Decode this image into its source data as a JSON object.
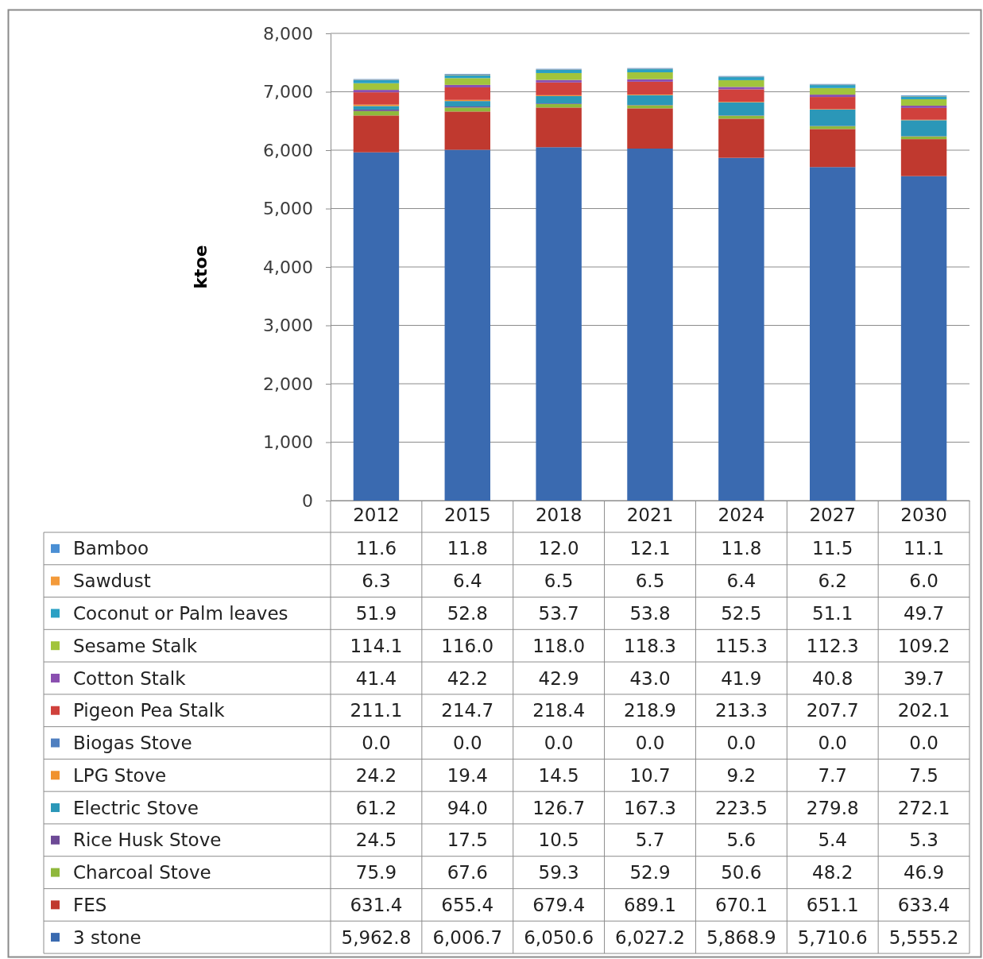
{
  "chart_data": {
    "type": "bar",
    "stacked": true,
    "ylabel": "ktoe",
    "grid": "y",
    "legend": "bottom",
    "categories": [
      "2012",
      "2015",
      "2018",
      "2021",
      "2024",
      "2027",
      "2030"
    ],
    "ylim": [
      0,
      8000
    ],
    "yticks": [
      0,
      {
        "value": 1000,
        "label": "1,000"
      },
      {
        "value": 2000,
        "label": "2,000"
      },
      {
        "value": 3000,
        "label": "3,000"
      },
      {
        "value": 4000,
        "label": "4,000"
      },
      {
        "value": 5000,
        "label": "5,000"
      },
      {
        "value": 6000,
        "label": "6,000"
      },
      {
        "value": 7000,
        "label": "7,000"
      },
      {
        "value": 8000,
        "label": "8,000"
      }
    ],
    "series": [
      {
        "name": "3 stone",
        "color": "#3a6ab0",
        "values": [
          5962.8,
          6006.7,
          6050.6,
          6027.2,
          5868.9,
          5710.6,
          5555.2
        ],
        "value_labels": [
          "5,962.8",
          "6,006.7",
          "6,050.6",
          "6,027.2",
          "5,868.9",
          "5,710.6",
          "5,555.2"
        ]
      },
      {
        "name": "FES",
        "color": "#c0392f",
        "values": [
          631.4,
          655.4,
          679.4,
          689.1,
          670.1,
          651.1,
          633.4
        ],
        "value_labels": [
          "631.4",
          "655.4",
          "679.4",
          "689.1",
          "670.1",
          "651.1",
          "633.4"
        ]
      },
      {
        "name": "Charcoal Stove",
        "color": "#8fb83c",
        "values": [
          75.9,
          67.6,
          59.3,
          52.9,
          50.6,
          48.2,
          46.9
        ],
        "value_labels": [
          "75.9",
          "67.6",
          "59.3",
          "52.9",
          "50.6",
          "48.2",
          "46.9"
        ]
      },
      {
        "name": "Rice Husk Stove",
        "color": "#6d4a96",
        "values": [
          24.5,
          17.5,
          10.5,
          5.7,
          5.6,
          5.4,
          5.3
        ],
        "value_labels": [
          "24.5",
          "17.5",
          "10.5",
          "5.7",
          "5.6",
          "5.4",
          "5.3"
        ]
      },
      {
        "name": "Electric Stove",
        "color": "#2b97b8",
        "values": [
          61.2,
          94.0,
          126.7,
          167.3,
          223.5,
          279.8,
          272.1
        ],
        "value_labels": [
          "61.2",
          "94.0",
          "126.7",
          "167.3",
          "223.5",
          "279.8",
          "272.1"
        ]
      },
      {
        "name": "LPG Stove",
        "color": "#f0922e",
        "values": [
          24.2,
          19.4,
          14.5,
          10.7,
          9.2,
          7.7,
          7.5
        ],
        "value_labels": [
          "24.2",
          "19.4",
          "14.5",
          "10.7",
          "9.2",
          "7.7",
          "7.5"
        ]
      },
      {
        "name": "Biogas Stove",
        "color": "#4f7fc0",
        "values": [
          0.0,
          0.0,
          0.0,
          0.0,
          0.0,
          0.0,
          0.0
        ],
        "value_labels": [
          "0.0",
          "0.0",
          "0.0",
          "0.0",
          "0.0",
          "0.0",
          "0.0"
        ]
      },
      {
        "name": "Pigeon Pea Stalk",
        "color": "#d0413c",
        "values": [
          211.1,
          214.7,
          218.4,
          218.9,
          213.3,
          207.7,
          202.1
        ],
        "value_labels": [
          "211.1",
          "214.7",
          "218.4",
          "218.9",
          "213.3",
          "207.7",
          "202.1"
        ]
      },
      {
        "name": "Cotton Stalk",
        "color": "#8a4fb0",
        "values": [
          41.4,
          42.2,
          42.9,
          43.0,
          41.9,
          40.8,
          39.7
        ],
        "value_labels": [
          "41.4",
          "42.2",
          "42.9",
          "43.0",
          "41.9",
          "40.8",
          "39.7"
        ]
      },
      {
        "name": "Sesame Stalk",
        "color": "#a2c43c",
        "values": [
          114.1,
          116.0,
          118.0,
          118.3,
          115.3,
          112.3,
          109.2
        ],
        "value_labels": [
          "114.1",
          "116.0",
          "118.0",
          "118.3",
          "115.3",
          "112.3",
          "109.2"
        ]
      },
      {
        "name": "Coconut or Palm leaves",
        "color": "#2aa0c4",
        "values": [
          51.9,
          52.8,
          53.7,
          53.8,
          52.5,
          51.1,
          49.7
        ],
        "value_labels": [
          "51.9",
          "52.8",
          "53.7",
          "53.8",
          "52.5",
          "51.1",
          "49.7"
        ]
      },
      {
        "name": "Sawdust",
        "color": "#f39a3a",
        "values": [
          6.3,
          6.4,
          6.5,
          6.5,
          6.4,
          6.2,
          6.0
        ],
        "value_labels": [
          "6.3",
          "6.4",
          "6.5",
          "6.5",
          "6.4",
          "6.2",
          "6.0"
        ]
      },
      {
        "name": "Bamboo",
        "color": "#4a8fd4",
        "values": [
          11.6,
          11.8,
          12.0,
          12.1,
          11.8,
          11.5,
          11.1
        ],
        "value_labels": [
          "11.6",
          "11.8",
          "12.0",
          "12.1",
          "11.8",
          "11.5",
          "11.1"
        ]
      }
    ]
  }
}
